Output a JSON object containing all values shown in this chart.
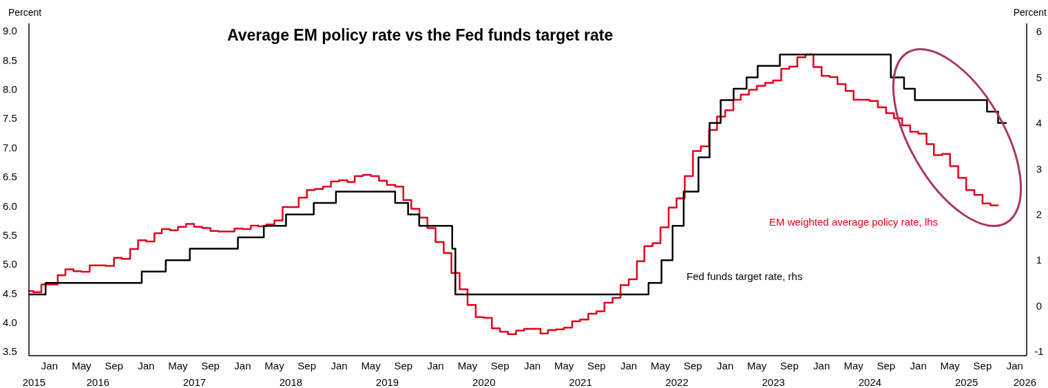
{
  "chart_data": {
    "type": "step",
    "title": "Average EM policy rate vs the Fed funds target rate",
    "ylabel": "Percent",
    "y2label": "Percent",
    "xlim": [
      "2015-10-15",
      "2026-02-15"
    ],
    "xticks": [
      {
        "value": "2016-01-01",
        "label": "Jan"
      },
      {
        "value": "2016-05-01",
        "label": "May"
      },
      {
        "value": "2016-09-01",
        "label": "Sep"
      },
      {
        "value": "2017-01-01",
        "label": "Jan"
      },
      {
        "value": "2017-05-01",
        "label": "May"
      },
      {
        "value": "2017-09-01",
        "label": "Sep"
      },
      {
        "value": "2018-01-01",
        "label": "Jan"
      },
      {
        "value": "2018-05-01",
        "label": "May"
      },
      {
        "value": "2018-09-01",
        "label": "Sep"
      },
      {
        "value": "2019-01-01",
        "label": "Jan"
      },
      {
        "value": "2019-05-01",
        "label": "May"
      },
      {
        "value": "2019-09-01",
        "label": "Sep"
      },
      {
        "value": "2020-01-01",
        "label": "Jan"
      },
      {
        "value": "2020-05-01",
        "label": "May"
      },
      {
        "value": "2020-09-01",
        "label": "Sep"
      },
      {
        "value": "2021-01-01",
        "label": "Jan"
      },
      {
        "value": "2021-05-01",
        "label": "May"
      },
      {
        "value": "2021-09-01",
        "label": "Sep"
      },
      {
        "value": "2022-01-01",
        "label": "Jan"
      },
      {
        "value": "2022-05-01",
        "label": "May"
      },
      {
        "value": "2022-09-01",
        "label": "Sep"
      },
      {
        "value": "2023-01-01",
        "label": "Jan"
      },
      {
        "value": "2023-05-01",
        "label": "May"
      },
      {
        "value": "2023-09-01",
        "label": "Sep"
      },
      {
        "value": "2024-01-01",
        "label": "Jan"
      },
      {
        "value": "2024-05-01",
        "label": "May"
      },
      {
        "value": "2024-09-01",
        "label": "Sep"
      },
      {
        "value": "2025-01-01",
        "label": "Jan"
      },
      {
        "value": "2025-05-01",
        "label": "May"
      },
      {
        "value": "2025-09-01",
        "label": "Sep"
      },
      {
        "value": "2026-01-01",
        "label": "Jan"
      }
    ],
    "annotations": [
      "2015",
      "2016",
      "2017",
      "2018",
      "2019",
      "2020",
      "2021",
      "2022",
      "2023",
      "2024",
      "2025",
      "2026"
    ],
    "ylim": [
      3.43,
      9.13
    ],
    "yticks": [
      3.5,
      {
        "value": 4,
        "label": "4.0"
      },
      4.5,
      {
        "value": 5,
        "label": "5.0"
      },
      5.5,
      {
        "value": 6,
        "label": "6.0"
      },
      6.5,
      {
        "value": 7,
        "label": "7.0"
      },
      7.5,
      {
        "value": 8,
        "label": "8.0"
      },
      8.5,
      {
        "value": 9,
        "label": "9.0"
      }
    ],
    "y2lim": [
      -1.09,
      6.18
    ],
    "y2ticks": [
      -1,
      0,
      1,
      2,
      3,
      4,
      5,
      6
    ],
    "series": [
      {
        "name": "EM weighted average policy rate, lhs",
        "color": "#e2001a",
        "x": [
          "2015-10-15",
          "2015-11",
          "2015-12",
          "2016-01",
          "2016-02",
          "2016-03",
          "2016-04",
          "2016-05",
          "2016-06",
          "2016-07",
          "2016-08",
          "2016-09",
          "2016-10",
          "2016-11",
          "2016-12",
          "2017-01",
          "2017-02",
          "2017-03",
          "2017-04",
          "2017-05",
          "2017-06",
          "2017-07",
          "2017-08",
          "2017-09",
          "2017-10",
          "2017-11",
          "2017-12",
          "2018-01",
          "2018-02",
          "2018-03",
          "2018-04",
          "2018-05",
          "2018-06",
          "2018-07",
          "2018-08",
          "2018-09",
          "2018-10",
          "2018-11",
          "2018-12",
          "2019-01",
          "2019-02",
          "2019-03",
          "2019-04",
          "2019-05",
          "2019-06",
          "2019-07",
          "2019-08",
          "2019-09",
          "2019-10",
          "2019-11",
          "2019-12",
          "2020-01",
          "2020-02",
          "2020-03",
          "2020-04",
          "2020-05",
          "2020-06",
          "2020-07",
          "2020-08",
          "2020-09",
          "2020-10",
          "2020-11",
          "2020-12",
          "2021-01",
          "2021-02",
          "2021-03",
          "2021-04",
          "2021-05",
          "2021-06",
          "2021-07",
          "2021-08",
          "2021-09",
          "2021-10",
          "2021-11",
          "2021-12",
          "2022-01",
          "2022-02",
          "2022-03",
          "2022-04",
          "2022-05",
          "2022-06",
          "2022-07",
          "2022-08",
          "2022-09",
          "2022-10",
          "2022-11",
          "2022-12",
          "2023-01",
          "2023-02",
          "2023-03",
          "2023-04",
          "2023-05",
          "2023-06",
          "2023-07",
          "2023-08",
          "2023-09",
          "2023-10",
          "2023-11",
          "2023-12",
          "2024-01",
          "2024-02",
          "2024-03",
          "2024-04",
          "2024-05",
          "2024-06",
          "2024-07",
          "2024-08",
          "2024-09",
          "2024-10",
          "2024-11",
          "2024-12",
          "2025-01",
          "2025-02",
          "2025-03",
          "2025-04",
          "2025-05",
          "2025-06",
          "2025-07",
          "2025-08",
          "2025-09",
          "2025-10",
          "2025-11"
        ],
        "values": [
          4.54,
          4.52,
          4.65,
          4.65,
          4.81,
          4.91,
          4.88,
          4.87,
          4.98,
          4.98,
          4.97,
          5.11,
          5.09,
          5.26,
          5.41,
          5.39,
          5.53,
          5.6,
          5.58,
          5.64,
          5.69,
          5.64,
          5.62,
          5.57,
          5.56,
          5.56,
          5.61,
          5.6,
          5.66,
          5.65,
          5.68,
          5.75,
          5.98,
          5.98,
          6.14,
          6.27,
          6.29,
          6.33,
          6.42,
          6.44,
          6.41,
          6.51,
          6.53,
          6.51,
          6.43,
          6.36,
          6.33,
          6.1,
          5.95,
          5.8,
          5.62,
          5.38,
          5.19,
          4.85,
          4.57,
          4.3,
          4.09,
          4.08,
          3.9,
          3.84,
          3.8,
          3.86,
          3.89,
          3.89,
          3.81,
          3.87,
          3.88,
          3.91,
          4.02,
          4.05,
          4.15,
          4.19,
          4.34,
          4.42,
          4.64,
          4.74,
          5.05,
          5.31,
          5.36,
          5.63,
          5.97,
          6.13,
          6.51,
          6.94,
          7.02,
          7.3,
          7.53,
          7.64,
          7.82,
          7.91,
          7.99,
          8.06,
          8.11,
          8.15,
          8.35,
          8.39,
          8.55,
          8.6,
          8.38,
          8.23,
          8.21,
          8.09,
          7.97,
          7.82,
          7.82,
          7.8,
          7.69,
          7.59,
          7.5,
          7.38,
          7.27,
          7.24,
          7.06,
          6.87,
          6.89,
          6.68,
          6.48,
          6.27,
          6.19,
          6.04,
          6.01,
          6.01
        ]
      },
      {
        "name": "Fed funds target rate, rhs",
        "color": "#000000",
        "axis": "y2",
        "x": [
          "2015-10-15",
          "2015-12-17",
          "2016-12-15",
          "2017-03-16",
          "2017-06-15",
          "2017-12-14",
          "2018-03-22",
          "2018-06-14",
          "2018-09-27",
          "2018-12-20",
          "2019-08-01",
          "2019-09-19",
          "2019-10-31",
          "2020-03-04",
          "2020-03-16",
          "2022-03-17",
          "2022-05-05",
          "2022-06-16",
          "2022-07-28",
          "2022-09-22",
          "2022-11-03",
          "2022-12-15",
          "2023-02-02",
          "2023-03-23",
          "2023-05-04",
          "2023-07-27",
          "2024-09-19",
          "2024-11-08",
          "2024-12-19",
          "2025-09-18",
          "2025-10-30",
          "2025-12-01"
        ],
        "values": [
          0.25,
          0.5,
          0.75,
          1.0,
          1.25,
          1.5,
          1.75,
          2.0,
          2.25,
          2.5,
          2.25,
          2.0,
          1.75,
          1.25,
          0.25,
          0.5,
          1.0,
          1.75,
          2.5,
          3.25,
          4.0,
          4.5,
          4.75,
          5.0,
          5.25,
          5.5,
          5.0,
          4.75,
          4.5,
          4.25,
          4.0,
          4.0
        ]
      }
    ]
  }
}
